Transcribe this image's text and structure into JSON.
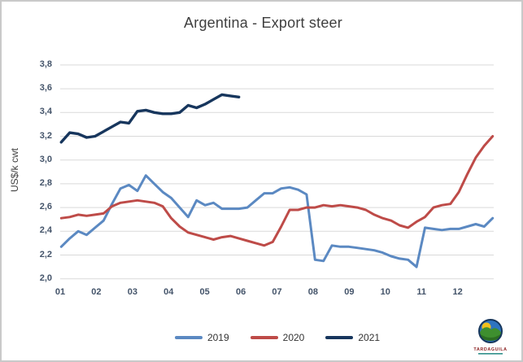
{
  "chart_data": {
    "type": "line",
    "title": "Argentina - Export steer",
    "xlabel": "",
    "ylabel": "US$/k cwt",
    "x_unit": "weeks, labeled by month number",
    "x_tick_labels": [
      "01",
      "02",
      "03",
      "04",
      "05",
      "06",
      "07",
      "08",
      "09",
      "10",
      "11",
      "12"
    ],
    "ylim": [
      2.0,
      3.8
    ],
    "y_ticks": [
      2.0,
      2.2,
      2.4,
      2.6,
      2.8,
      3.0,
      3.2,
      3.4,
      3.6,
      3.8
    ],
    "y_tick_labels": [
      "2,0",
      "2,2",
      "2,4",
      "2,6",
      "2,8",
      "3,0",
      "3,2",
      "3,4",
      "3,6",
      "3,8"
    ],
    "grid": "horizontal-only",
    "legend_position": "bottom",
    "series": [
      {
        "name": "2019",
        "color": "#5b89c2",
        "values": [
          2.27,
          2.34,
          2.4,
          2.37,
          2.43,
          2.49,
          2.63,
          2.76,
          2.79,
          2.74,
          2.87,
          2.8,
          2.73,
          2.68,
          2.6,
          2.52,
          2.66,
          2.62,
          2.64,
          2.59,
          2.59,
          2.59,
          2.6,
          2.66,
          2.72,
          2.72,
          2.76,
          2.77,
          2.75,
          2.71,
          2.16,
          2.15,
          2.28,
          2.27,
          2.27,
          2.26,
          2.25,
          2.24,
          2.22,
          2.19,
          2.17,
          2.16,
          2.1,
          2.43,
          2.42,
          2.41,
          2.42,
          2.42,
          2.44,
          2.46,
          2.44,
          2.51
        ]
      },
      {
        "name": "2020",
        "color": "#be4b48",
        "values": [
          2.51,
          2.52,
          2.54,
          2.53,
          2.54,
          2.55,
          2.61,
          2.64,
          2.65,
          2.66,
          2.65,
          2.64,
          2.61,
          2.51,
          2.44,
          2.39,
          2.37,
          2.35,
          2.33,
          2.35,
          2.36,
          2.34,
          2.32,
          2.3,
          2.28,
          2.31,
          2.44,
          2.58,
          2.58,
          2.6,
          2.6,
          2.62,
          2.61,
          2.62,
          2.61,
          2.6,
          2.58,
          2.54,
          2.51,
          2.49,
          2.45,
          2.43,
          2.48,
          2.52,
          2.6,
          2.62,
          2.63,
          2.73,
          2.88,
          3.02,
          3.12,
          3.2
        ]
      },
      {
        "name": "2021",
        "color": "#17365d",
        "values": [
          3.15,
          3.23,
          3.22,
          3.19,
          3.2,
          3.24,
          3.28,
          3.32,
          3.31,
          3.41,
          3.42,
          3.4,
          3.39,
          3.39,
          3.4,
          3.46,
          3.44,
          3.47,
          3.51,
          3.55,
          3.54,
          3.53
        ]
      }
    ]
  },
  "branding": {
    "logo_text": "TARDAGUILA"
  },
  "style": {
    "gridline_color": "#d9d9d9",
    "tick_label_color": "#44546a",
    "title_color": "#3f3f3f"
  }
}
